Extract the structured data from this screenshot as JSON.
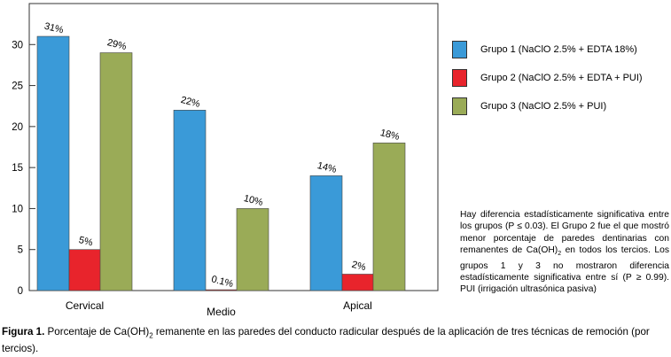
{
  "chart_data": {
    "type": "bar",
    "categories": [
      "Cervical",
      "Medio",
      "Apical"
    ],
    "series": [
      {
        "name": "Grupo 1 (NaClO 2.5% + EDTA 18%)",
        "color": "#3a9ad8",
        "values": [
          31,
          22,
          14
        ],
        "labels": [
          "31%",
          "22%",
          "14%"
        ]
      },
      {
        "name": "Grupo 2 (NaClO 2.5% + EDTA + PUI)",
        "color": "#e8242c",
        "values": [
          5,
          0.1,
          2
        ],
        "labels": [
          "5%",
          "0.1%",
          "2%"
        ]
      },
      {
        "name": "Grupo 3 (NaClO 2.5% + PUI)",
        "color": "#9aab57",
        "values": [
          29,
          10,
          18
        ],
        "labels": [
          "29%",
          "10%",
          "18%"
        ]
      }
    ],
    "yticks": [
      0,
      5,
      10,
      15,
      20,
      25,
      30
    ],
    "ylim": [
      0,
      35
    ],
    "legend_position": "right",
    "grid": false
  },
  "note": {
    "part1": "Hay diferencia estadísticamente significativa entre los grupos (P ≤ 0.03). El Grupo 2 fue el que mostró menor porcentaje de paredes dentinarias con remanentes de Ca(OH)",
    "sub": "2",
    "part2": " en todos los tercios.  Los grupos 1 y 3 no mostraron diferencia estadísticamente significativa entre sí (P ≥ 0.99). PUI (irrigación ultrasónica pasiva)"
  },
  "caption": {
    "label": "Figura 1.",
    "part1": " Porcentaje de Ca(OH)",
    "sub": "2",
    "part2": " remanente en las paredes del conducto radicular después de la aplicación de tres técnicas de remoción (por tercios)."
  }
}
